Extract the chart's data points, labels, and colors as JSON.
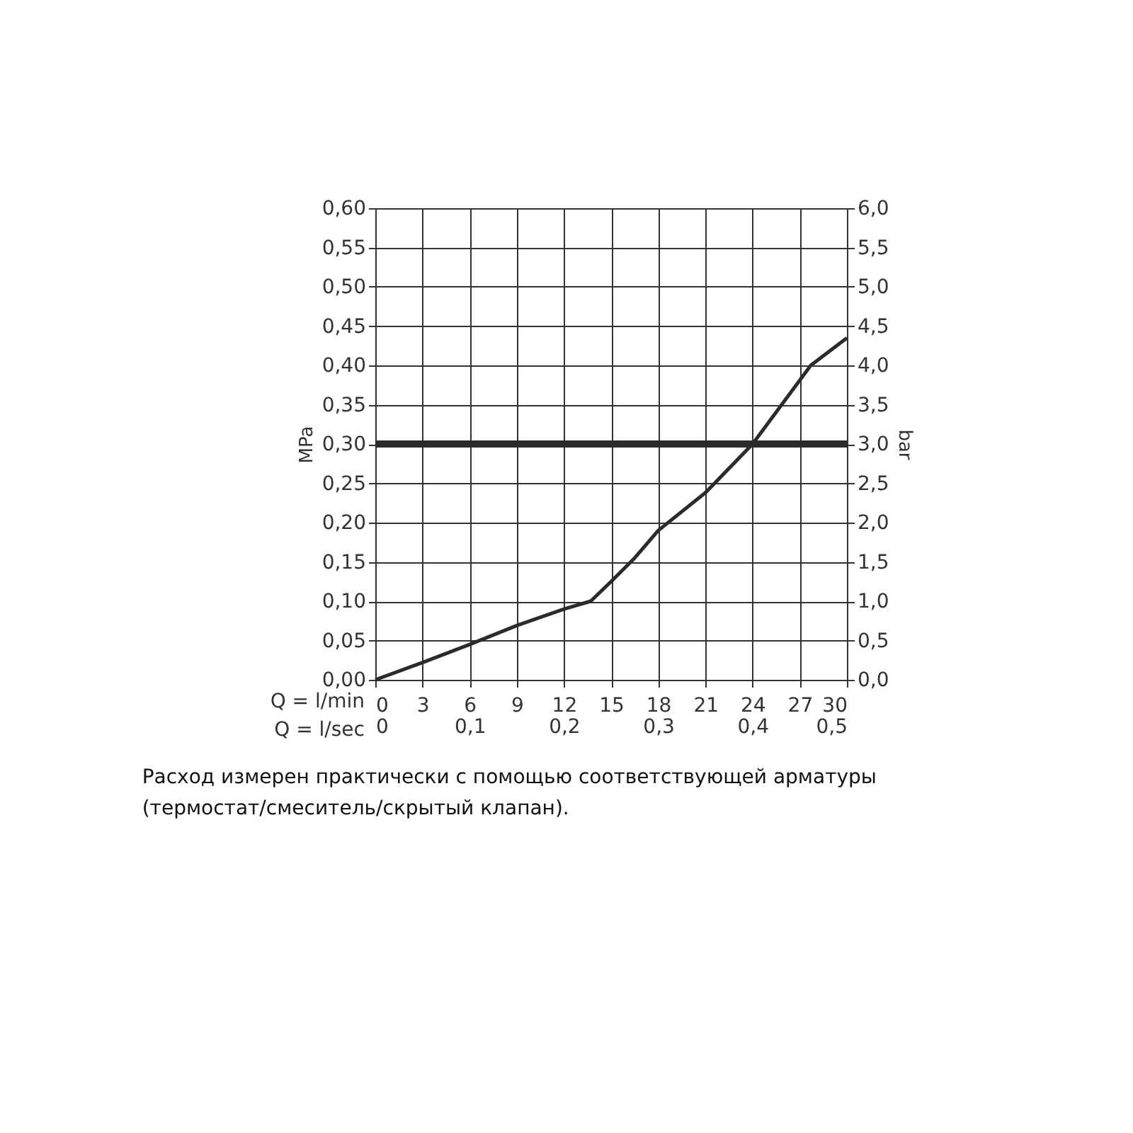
{
  "chart_data": {
    "type": "line",
    "xlabel": "Q = l/min",
    "x2label": "Q = l/sec",
    "ylabel": "MPa",
    "y2label": "bar",
    "x": [
      0,
      3,
      6,
      9,
      12,
      13.7,
      15,
      16.5,
      18,
      21,
      24,
      27.7,
      30
    ],
    "series": [
      {
        "color": "#2b2b2b",
        "values": [
          0,
          0.022,
          0.045,
          0.069,
          0.09,
          0.1,
          0.125,
          0.155,
          0.19,
          0.238,
          0.3,
          0.4,
          0.435
        ]
      }
    ],
    "xlim": [
      0,
      30
    ],
    "xticks": [
      0,
      3,
      6,
      9,
      12,
      15,
      18,
      21,
      24,
      27,
      30
    ],
    "x2lim": [
      0,
      0.5
    ],
    "x2ticks": [
      0,
      {
        "value": 0.1,
        "label": "0,1"
      },
      {
        "value": 0.2,
        "label": "0,2"
      },
      {
        "value": 0.3,
        "label": "0,3"
      },
      {
        "value": 0.4,
        "label": "0,4"
      },
      {
        "value": 0.5,
        "label": "0,5"
      }
    ],
    "ylim": [
      0,
      0.6
    ],
    "yticks": [
      {
        "value": 0,
        "label": "0,00"
      },
      {
        "value": 0.05,
        "label": "0,05"
      },
      {
        "value": 0.1,
        "label": "0,10"
      },
      {
        "value": 0.15,
        "label": "0,15"
      },
      {
        "value": 0.2,
        "label": "0,20"
      },
      {
        "value": 0.25,
        "label": "0,25"
      },
      {
        "value": 0.3,
        "label": "0,30"
      },
      {
        "value": 0.35,
        "label": "0,35"
      },
      {
        "value": 0.4,
        "label": "0,40"
      },
      {
        "value": 0.45,
        "label": "0,45"
      },
      {
        "value": 0.5,
        "label": "0,50"
      },
      {
        "value": 0.55,
        "label": "0,55"
      },
      {
        "value": 0.6,
        "label": "0,60"
      }
    ],
    "y2lim": [
      0,
      6
    ],
    "y2ticks": [
      {
        "value": 0,
        "label": "0,0"
      },
      {
        "value": 0.5,
        "label": "0,5"
      },
      {
        "value": 1,
        "label": "1,0"
      },
      {
        "value": 1.5,
        "label": "1,5"
      },
      {
        "value": 2,
        "label": "2,0"
      },
      {
        "value": 2.5,
        "label": "2,5"
      },
      {
        "value": 3,
        "label": "3,0"
      },
      {
        "value": 3.5,
        "label": "3,5"
      },
      {
        "value": 4,
        "label": "4,0"
      },
      {
        "value": 4.5,
        "label": "4,5"
      },
      {
        "value": 5,
        "label": "5,0"
      },
      {
        "value": 5.5,
        "label": "5,5"
      },
      {
        "value": 6,
        "label": "6,0"
      }
    ],
    "ref_lines": [
      {
        "axis": "y2",
        "value": 3,
        "color": "#2b2b2b"
      }
    ],
    "grid": true,
    "marker": "none",
    "line_style": "solid",
    "annotations": [
      "Расход измерен практически с помощью соответствующей арматуры (термостат/смеситель/скрытый клапан)."
    ]
  }
}
